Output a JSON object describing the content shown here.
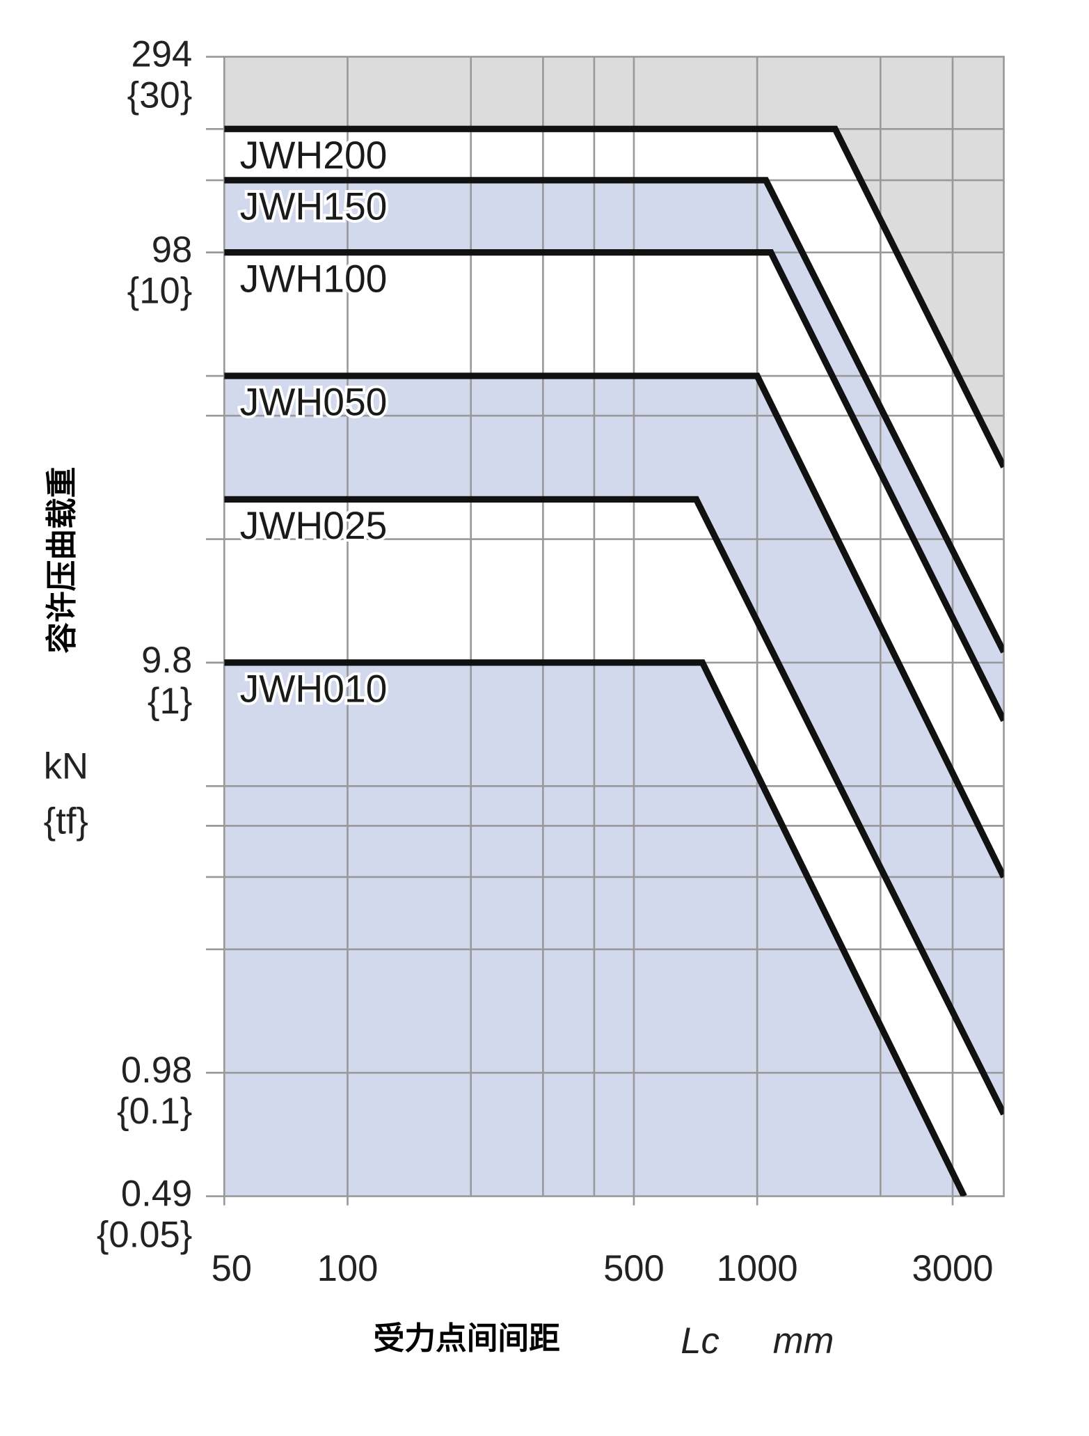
{
  "chart_data": {
    "type": "line",
    "log_x": true,
    "log_y": true,
    "y_label": "容许压曲载重",
    "y_unit": "kN",
    "y_unit_alt": "{tf}",
    "x_label": "受力点间间距",
    "x_unit_symbol": "Lc",
    "x_unit": "mm",
    "xlim": [
      50,
      4000
    ],
    "ylim": [
      0.49,
      294
    ],
    "xticks": [
      50,
      100,
      500,
      1000,
      3000
    ],
    "yticks": [
      0.49,
      0.98,
      9.8,
      98,
      294
    ],
    "ytick_alt_labels": [
      "{0.05}",
      "{0.1}",
      "{1}",
      "{10}",
      "{30}"
    ],
    "x_grid": [
      100,
      200,
      300,
      400,
      500,
      1000,
      2000,
      3000
    ],
    "y_grid": [
      0.98,
      1.96,
      2.94,
      3.92,
      4.9,
      9.8,
      19.6,
      39.2,
      49,
      98,
      147,
      196
    ],
    "band_colors": [
      "#d3d9ed",
      "#ffffff",
      "#d3d9ed",
      "#ffffff",
      "#d3d9ed",
      "#ffffff",
      "#dcdcdc"
    ],
    "line_color": "#111111",
    "series": [
      {
        "name": "JWH010",
        "x": [
          50,
          735,
          3200
        ],
        "values": [
          9.8,
          9.8,
          0.49
        ]
      },
      {
        "name": "JWH025",
        "x": [
          50,
          710,
          4000
        ],
        "values": [
          24.5,
          24.5,
          0.777
        ]
      },
      {
        "name": "JWH050",
        "x": [
          50,
          1000,
          4000
        ],
        "values": [
          49,
          49,
          2.94
        ]
      },
      {
        "name": "JWH100",
        "x": [
          50,
          1080,
          4000
        ],
        "values": [
          98,
          98,
          7.08
        ]
      },
      {
        "name": "JWH150",
        "x": [
          50,
          1050,
          4000
        ],
        "values": [
          147,
          147,
          10.4
        ]
      },
      {
        "name": "JWH200",
        "x": [
          50,
          1550,
          4000
        ],
        "values": [
          196,
          196,
          29.4
        ]
      }
    ]
  }
}
